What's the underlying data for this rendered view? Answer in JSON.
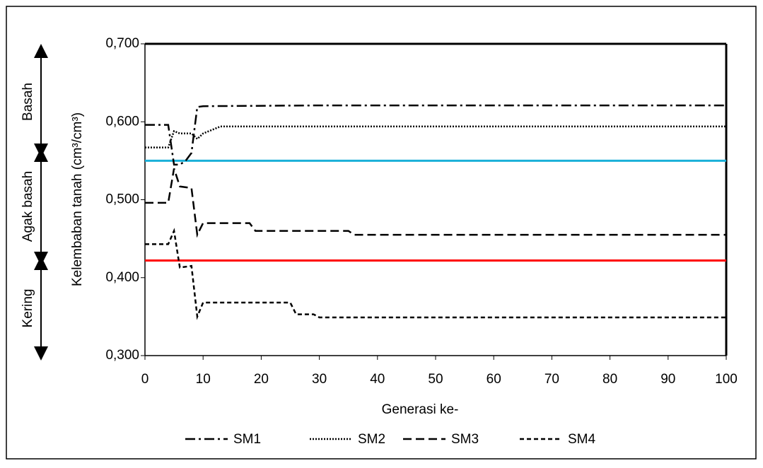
{
  "chart_data": {
    "type": "line",
    "xlabel": "Generasi ke-",
    "ylabel": "Kelembaban tanah (cm³/cm³)",
    "xlim": [
      0,
      100
    ],
    "xticks": [
      0,
      10,
      20,
      30,
      40,
      50,
      60,
      70,
      80,
      90,
      100
    ],
    "ylim": [
      0.3,
      0.7
    ],
    "yticks": [
      {
        "value": 0.3,
        "label": "0,300"
      },
      {
        "value": 0.4,
        "label": "0,400"
      },
      {
        "value": 0.5,
        "label": "0,500"
      },
      {
        "value": 0.6,
        "label": "0,600"
      },
      {
        "value": 0.7,
        "label": "0,700"
      }
    ],
    "series": [
      {
        "name": "SM1",
        "color": "#000000",
        "dash": "14 5 3 5",
        "x": [
          0,
          4,
          5,
          6,
          7,
          8,
          9,
          10,
          30,
          100
        ],
        "values": [
          0.596,
          0.596,
          0.545,
          0.545,
          0.55,
          0.56,
          0.619,
          0.62,
          0.621,
          0.621
        ]
      },
      {
        "name": "SM2",
        "color": "#000000",
        "dash": "2 2",
        "x": [
          0,
          4,
          5,
          6,
          8,
          9,
          10,
          11,
          13,
          100
        ],
        "values": [
          0.567,
          0.567,
          0.588,
          0.585,
          0.585,
          0.578,
          0.585,
          0.588,
          0.594,
          0.594
        ]
      },
      {
        "name": "SM3",
        "color": "#000000",
        "dash": "12 6",
        "x": [
          0,
          4,
          5,
          6,
          8,
          9,
          10,
          18,
          19,
          35,
          36,
          100
        ],
        "values": [
          0.496,
          0.496,
          0.54,
          0.517,
          0.515,
          0.455,
          0.47,
          0.47,
          0.46,
          0.46,
          0.455,
          0.455
        ]
      },
      {
        "name": "SM4",
        "color": "#000000",
        "dash": "6 4",
        "x": [
          0,
          4,
          5,
          6,
          8,
          9,
          10,
          25,
          26,
          29,
          30,
          100
        ],
        "values": [
          0.443,
          0.443,
          0.46,
          0.413,
          0.415,
          0.35,
          0.368,
          0.368,
          0.353,
          0.353,
          0.349,
          0.349
        ]
      }
    ],
    "reference_lines": [
      {
        "value": 0.55,
        "color": "#1ab0d8"
      },
      {
        "value": 0.422,
        "color": "#ff0000"
      }
    ],
    "zones": [
      "Basah",
      "Agak basah",
      "Kering"
    ]
  }
}
